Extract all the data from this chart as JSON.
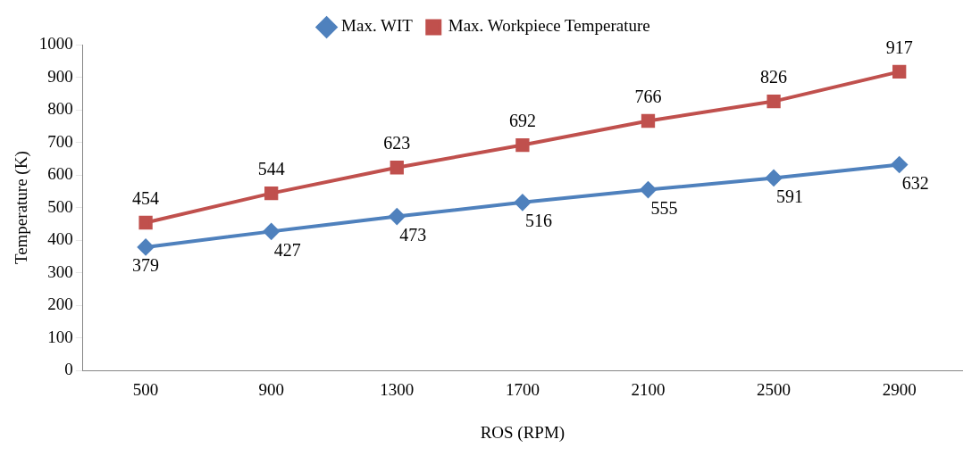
{
  "chart_data": {
    "type": "line",
    "xlabel": "ROS (RPM)",
    "ylabel": "Temperature (K)",
    "categories": [
      "500",
      "900",
      "1300",
      "1700",
      "2100",
      "2500",
      "2900"
    ],
    "series": [
      {
        "name": "Max. WIT",
        "color": "#4f81bd",
        "marker": "diamond",
        "values": [
          379,
          427,
          473,
          516,
          555,
          591,
          632
        ]
      },
      {
        "name": "Max. Workpiece Temperature",
        "color": "#c0504d",
        "marker": "square",
        "values": [
          454,
          544,
          623,
          692,
          766,
          826,
          917
        ]
      }
    ],
    "ylim": [
      0,
      1000
    ],
    "yticks": [
      0,
      100,
      200,
      300,
      400,
      500,
      600,
      700,
      800,
      900,
      1000
    ],
    "grid": false,
    "legend": "top",
    "data_labels": true,
    "line_style": "solid"
  }
}
